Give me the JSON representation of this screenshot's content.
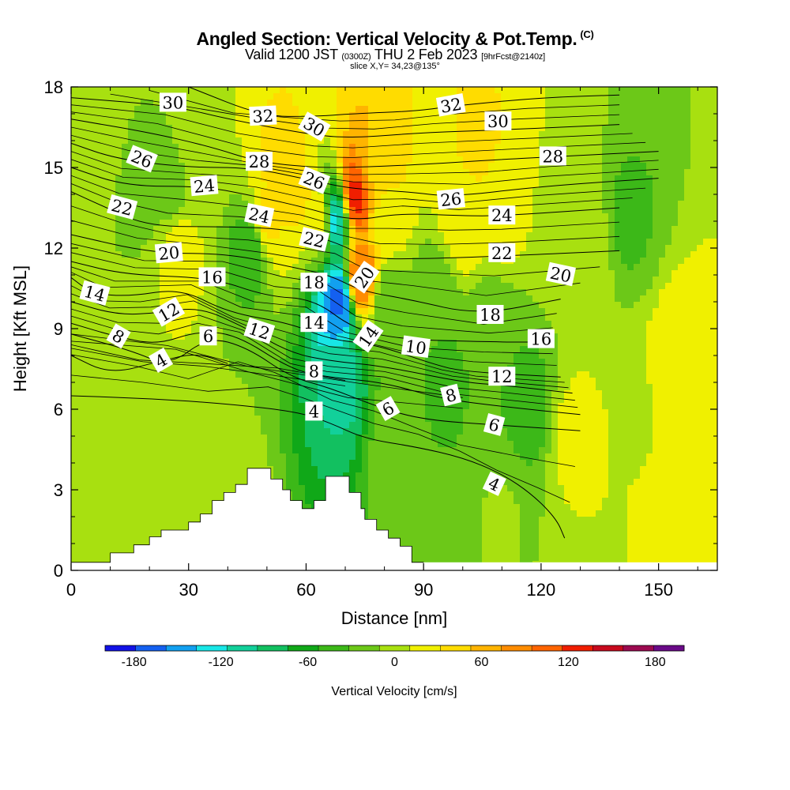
{
  "header": {
    "title": "Angled Section: Vertical Velocity & Pot.Temp.",
    "copyright": "(C)",
    "valid_a": "Valid 1200 JST",
    "valid_b": "(0300Z)",
    "valid_c": "THU 2 Feb 2023",
    "valid_d": "[9hrFcst@2140z]",
    "slice": "slice X,Y= 34,23@135°"
  },
  "chart_data": {
    "type": "heatmap",
    "title": "Angled Section: Vertical Velocity & Pot.Temp.",
    "xlabel": "Distance [nm]",
    "ylabel": "Height [Kft MSL]",
    "xlim": [
      0,
      165
    ],
    "ylim": [
      0,
      18
    ],
    "x_ticks": [
      "0",
      "30",
      "60",
      "90",
      "120",
      "150"
    ],
    "y_ticks": [
      "0",
      "3",
      "6",
      "9",
      "12",
      "15",
      "18"
    ],
    "colorbar": {
      "label": "Vertical Velocity [cm/s]",
      "tick_labels": [
        "-180",
        "-120",
        "-60",
        "0",
        "60",
        "120",
        "180"
      ],
      "range": [
        -200,
        200
      ],
      "colors": [
        "#1212e6",
        "#1460f0",
        "#12a0f0",
        "#18e6e6",
        "#12d09a",
        "#12c060",
        "#10a818",
        "#3cb818",
        "#6cc818",
        "#a8e010",
        "#f0f000",
        "#ffdc00",
        "#ffb400",
        "#ff8c00",
        "#ff6400",
        "#f01e00",
        "#c80a1e",
        "#9c0a50",
        "#6a0a88"
      ]
    },
    "field": [
      {
        "x": 5,
        "y": 16,
        "w": 0
      },
      {
        "x": 18,
        "y": 14,
        "w": -15
      },
      {
        "x": 25,
        "y": 14,
        "w": -20
      },
      {
        "x": 27,
        "y": 12,
        "w": 20
      },
      {
        "x": 34,
        "y": 16,
        "w": 10
      },
      {
        "x": 46,
        "y": 12,
        "w": -45
      },
      {
        "x": 50,
        "y": 13,
        "w": 35
      },
      {
        "x": 54,
        "y": 15,
        "w": 40
      },
      {
        "x": 58,
        "y": 14,
        "w": 35
      },
      {
        "x": 64,
        "y": 13,
        "w": 30
      },
      {
        "x": 67,
        "y": 13,
        "w": -120
      },
      {
        "x": 68,
        "y": 10,
        "w": -160
      },
      {
        "x": 69,
        "y": 7,
        "w": -100
      },
      {
        "x": 73,
        "y": 14,
        "w": 120
      },
      {
        "x": 74,
        "y": 11,
        "w": 90
      },
      {
        "x": 77,
        "y": 15,
        "w": 50
      },
      {
        "x": 80,
        "y": 13,
        "w": 25
      },
      {
        "x": 81,
        "y": 10,
        "w": -25
      },
      {
        "x": 83,
        "y": 5,
        "w": -20
      },
      {
        "x": 93,
        "y": 10,
        "w": -30
      },
      {
        "x": 95,
        "y": 7,
        "w": -35
      },
      {
        "x": 100,
        "y": 13,
        "w": 25
      },
      {
        "x": 104,
        "y": 16,
        "w": 35
      },
      {
        "x": 108,
        "y": 9,
        "w": -30
      },
      {
        "x": 110,
        "y": 13,
        "w": 15
      },
      {
        "x": 117,
        "y": 6,
        "w": -40
      },
      {
        "x": 125,
        "y": 14,
        "w": 10
      },
      {
        "x": 128,
        "y": 5,
        "w": 15
      },
      {
        "x": 132,
        "y": 12,
        "w": 10
      },
      {
        "x": 142,
        "y": 13,
        "w": -35
      },
      {
        "x": 20,
        "y": 5,
        "w": 10
      },
      {
        "x": 40,
        "y": 2,
        "w": 5
      },
      {
        "x": 110,
        "y": 2,
        "w": -10
      },
      {
        "x": 145,
        "y": 6,
        "w": 10
      },
      {
        "x": 155,
        "y": 8,
        "w": 20
      },
      {
        "x": 160,
        "y": 3,
        "w": 25
      }
    ],
    "terrain": [
      [
        0,
        0.3
      ],
      [
        10,
        0.3
      ],
      [
        10,
        0.65
      ],
      [
        16,
        0.65
      ],
      [
        16,
        0.95
      ],
      [
        20,
        0.95
      ],
      [
        20,
        1.25
      ],
      [
        23,
        1.25
      ],
      [
        23,
        1.5
      ],
      [
        30,
        1.5
      ],
      [
        30,
        1.8
      ],
      [
        33,
        1.8
      ],
      [
        33,
        2.1
      ],
      [
        36,
        2.1
      ],
      [
        36,
        2.6
      ],
      [
        39,
        2.6
      ],
      [
        39,
        2.9
      ],
      [
        42,
        2.9
      ],
      [
        42,
        3.2
      ],
      [
        45,
        3.2
      ],
      [
        45,
        3.8
      ],
      [
        51,
        3.8
      ],
      [
        51,
        3.4
      ],
      [
        54,
        3.4
      ],
      [
        54,
        3.0
      ],
      [
        56,
        3.0
      ],
      [
        56,
        2.6
      ],
      [
        59,
        2.6
      ],
      [
        59,
        2.3
      ],
      [
        62,
        2.3
      ],
      [
        62,
        2.6
      ],
      [
        65,
        2.6
      ],
      [
        65,
        3.5
      ],
      [
        71,
        3.5
      ],
      [
        71,
        2.9
      ],
      [
        74,
        2.9
      ],
      [
        74,
        2.3
      ],
      [
        75,
        2.3
      ],
      [
        75,
        1.9
      ],
      [
        78,
        1.9
      ],
      [
        78,
        1.5
      ],
      [
        81,
        1.5
      ],
      [
        81,
        1.2
      ],
      [
        84,
        1.2
      ],
      [
        84,
        0.9
      ],
      [
        87,
        0.9
      ],
      [
        87,
        0.3
      ],
      [
        90,
        0.3
      ],
      [
        90,
        0
      ]
    ],
    "theta_contours": [
      {
        "value": "4",
        "label_at": [
          56,
          5.95
        ],
        "pts": [
          [
            0,
            6.5
          ],
          [
            20,
            6.4
          ],
          [
            40,
            6.2
          ],
          [
            58,
            5.9
          ],
          [
            66,
            5.5
          ],
          [
            75,
            4.9
          ],
          [
            88,
            4.6
          ],
          [
            100,
            4.2
          ],
          [
            110,
            3.6
          ],
          [
            118,
            2.8
          ],
          [
            124,
            1.9
          ],
          [
            126,
            1.2
          ]
        ]
      },
      {
        "value": "6",
        "label_at": [
          35,
          8.7
        ],
        "pts": [
          [
            0,
            8.8
          ],
          [
            15,
            8.2
          ],
          [
            25,
            7.6
          ],
          [
            35,
            8.7
          ],
          [
            45,
            8.3
          ],
          [
            56,
            7.2
          ],
          [
            66,
            6.8
          ],
          [
            78,
            6.1
          ],
          [
            90,
            5.6
          ],
          [
            110,
            5.4
          ],
          [
            130,
            5.2
          ]
        ]
      },
      {
        "value": "4",
        "label_at": [
          23,
          7.8
        ],
        "pts": [
          [
            0,
            8.0
          ],
          [
            10,
            7.3
          ],
          [
            23,
            7.8
          ],
          [
            32,
            8.1
          ],
          [
            40,
            7.7
          ]
        ]
      },
      {
        "value": "8",
        "label_at": [
          11.5,
          8.7
        ],
        "pts": [
          [
            0,
            9.2
          ],
          [
            11.5,
            8.7
          ],
          [
            22,
            8.4
          ],
          [
            32,
            8.9
          ],
          [
            42,
            8.8
          ],
          [
            56,
            7.5
          ],
          [
            65,
            7.2
          ],
          [
            80,
            7.0
          ],
          [
            94,
            6.4
          ],
          [
            110,
            6.1
          ],
          [
            130,
            5.8
          ]
        ]
      },
      {
        "value": "12",
        "label_at": [
          23,
          9.6
        ],
        "pts": [
          [
            0,
            10.0
          ],
          [
            12,
            9.5
          ],
          [
            23,
            9.6
          ],
          [
            33,
            9.8
          ],
          [
            45,
            9.0
          ],
          [
            56,
            8.1
          ],
          [
            66,
            7.8
          ],
          [
            80,
            7.6
          ],
          [
            100,
            7.0
          ],
          [
            110,
            6.9
          ],
          [
            128,
            6.6
          ]
        ]
      },
      {
        "value": "14",
        "label_at": [
          5.5,
          10.3
        ],
        "pts": [
          [
            0,
            10.9
          ],
          [
            5.5,
            10.3
          ],
          [
            15,
            10.2
          ],
          [
            28,
            10.5
          ],
          [
            40,
            9.6
          ],
          [
            56,
            9.2
          ],
          [
            66,
            8.6
          ],
          [
            78,
            8.4
          ],
          [
            92,
            7.7
          ],
          [
            100,
            7.4
          ],
          [
            125,
            7.2
          ]
        ]
      },
      {
        "value": "16",
        "label_at": [
          36,
          10.9
        ],
        "pts": [
          [
            0,
            11.5
          ],
          [
            14,
            11.0
          ],
          [
            36,
            10.9
          ],
          [
            50,
            10.2
          ],
          [
            62,
            10.1
          ],
          [
            72,
            9.0
          ],
          [
            84,
            8.6
          ],
          [
            108,
            8.5
          ],
          [
            122,
            8.5
          ]
        ]
      },
      {
        "value": "20",
        "label_at": [
          21,
          11.8
        ],
        "pts": [
          [
            0,
            12.5
          ],
          [
            21,
            11.8
          ],
          [
            40,
            11.8
          ],
          [
            56,
            11.3
          ],
          [
            66,
            11.0
          ],
          [
            74,
            10.4
          ],
          [
            86,
            10.1
          ],
          [
            104,
            9.5
          ],
          [
            125,
            10.1
          ]
        ]
      },
      {
        "value": "22",
        "label_at": [
          9,
          13.5
        ],
        "pts": [
          [
            0,
            14.1
          ],
          [
            9,
            13.5
          ],
          [
            20,
            12.8
          ],
          [
            40,
            12.8
          ],
          [
            56,
            12.7
          ],
          [
            68,
            12.2
          ],
          [
            76,
            11.6
          ],
          [
            90,
            11.6
          ],
          [
            110,
            11.7
          ],
          [
            140,
            11.9
          ]
        ]
      },
      {
        "value": "24",
        "label_at": [
          34,
          14.3
        ],
        "pts": [
          [
            0,
            15.0
          ],
          [
            14,
            14.3
          ],
          [
            34,
            14.3
          ],
          [
            48,
            13.9
          ],
          [
            60,
            13.5
          ],
          [
            72,
            13.0
          ],
          [
            84,
            13.3
          ],
          [
            100,
            13.2
          ],
          [
            110,
            13.2
          ],
          [
            140,
            13.5
          ]
        ]
      },
      {
        "value": "26",
        "label_at": [
          12,
          15.3
        ],
        "pts": [
          [
            0,
            15.9
          ],
          [
            12,
            15.3
          ],
          [
            30,
            15.0
          ],
          [
            46,
            15.0
          ],
          [
            62,
            14.5
          ],
          [
            72,
            14.2
          ],
          [
            86,
            14.1
          ],
          [
            97,
            13.9
          ],
          [
            120,
            14.3
          ],
          [
            150,
            14.6
          ]
        ]
      },
      {
        "value": "28",
        "label_at": [
          48,
          15.2
        ],
        "pts": [
          [
            0,
            16.8
          ],
          [
            20,
            16.3
          ],
          [
            35,
            15.8
          ],
          [
            48,
            15.2
          ],
          [
            62,
            15.0
          ],
          [
            72,
            15.0
          ],
          [
            88,
            15.1
          ],
          [
            110,
            15.3
          ],
          [
            123,
            15.4
          ],
          [
            150,
            15.6
          ]
        ]
      },
      {
        "value": "30",
        "label_at": [
          26,
          17.3
        ],
        "pts": [
          [
            0,
            17.6
          ],
          [
            26,
            17.3
          ],
          [
            40,
            16.8
          ],
          [
            62,
            16.2
          ],
          [
            72,
            16.1
          ],
          [
            90,
            16.3
          ],
          [
            110,
            16.4
          ],
          [
            140,
            16.6
          ]
        ]
      },
      {
        "value": "32",
        "label_at": [
          49,
          16.9
        ],
        "pts": [
          [
            30,
            18.0
          ],
          [
            49,
            16.9
          ],
          [
            62,
            16.9
          ],
          [
            72,
            17.0
          ],
          [
            88,
            17.1
          ],
          [
            98,
            17.3
          ],
          [
            120,
            17.6
          ],
          [
            140,
            17.7
          ]
        ]
      }
    ],
    "contour_labels": [
      {
        "text": "30",
        "x": 26,
        "y": 17.4,
        "rot": 0
      },
      {
        "text": "32",
        "x": 49,
        "y": 16.9,
        "rot": -3
      },
      {
        "text": "30",
        "x": 62,
        "y": 16.5,
        "rot": 30
      },
      {
        "text": "32",
        "x": 97,
        "y": 17.3,
        "rot": -10
      },
      {
        "text": "30",
        "x": 109,
        "y": 16.7,
        "rot": 0
      },
      {
        "text": "26",
        "x": 18,
        "y": 15.3,
        "rot": 22
      },
      {
        "text": "28",
        "x": 48,
        "y": 15.2,
        "rot": 0
      },
      {
        "text": "26",
        "x": 62,
        "y": 14.5,
        "rot": 22
      },
      {
        "text": "28",
        "x": 123,
        "y": 15.4,
        "rot": 0
      },
      {
        "text": "24",
        "x": 34,
        "y": 14.3,
        "rot": -5
      },
      {
        "text": "22",
        "x": 13,
        "y": 13.5,
        "rot": 15
      },
      {
        "text": "26",
        "x": 97,
        "y": 13.8,
        "rot": -6
      },
      {
        "text": "24",
        "x": 48,
        "y": 13.2,
        "rot": 12
      },
      {
        "text": "24",
        "x": 110,
        "y": 13.2,
        "rot": 0
      },
      {
        "text": "22",
        "x": 62,
        "y": 12.3,
        "rot": 14
      },
      {
        "text": "20",
        "x": 25,
        "y": 11.8,
        "rot": -5
      },
      {
        "text": "22",
        "x": 110,
        "y": 11.8,
        "rot": 0
      },
      {
        "text": "20",
        "x": 75,
        "y": 10.9,
        "rot": -55
      },
      {
        "text": "20",
        "x": 125,
        "y": 11.0,
        "rot": 12
      },
      {
        "text": "16",
        "x": 36,
        "y": 10.9,
        "rot": 0
      },
      {
        "text": "18",
        "x": 62,
        "y": 10.7,
        "rot": 0
      },
      {
        "text": "14",
        "x": 6,
        "y": 10.3,
        "rot": 15
      },
      {
        "text": "12",
        "x": 25,
        "y": 9.6,
        "rot": -30
      },
      {
        "text": "18",
        "x": 107,
        "y": 9.5,
        "rot": 0
      },
      {
        "text": "14",
        "x": 62,
        "y": 9.2,
        "rot": 0
      },
      {
        "text": "12",
        "x": 48,
        "y": 8.9,
        "rot": 18
      },
      {
        "text": "14",
        "x": 76,
        "y": 8.7,
        "rot": -55
      },
      {
        "text": "8",
        "x": 12,
        "y": 8.7,
        "rot": 30
      },
      {
        "text": "6",
        "x": 35,
        "y": 8.7,
        "rot": 0
      },
      {
        "text": "16",
        "x": 120,
        "y": 8.6,
        "rot": 0
      },
      {
        "text": "10",
        "x": 88,
        "y": 8.3,
        "rot": 8
      },
      {
        "text": "4",
        "x": 23,
        "y": 7.8,
        "rot": -30
      },
      {
        "text": "8",
        "x": 62,
        "y": 7.4,
        "rot": 0
      },
      {
        "text": "12",
        "x": 110,
        "y": 7.2,
        "rot": 0
      },
      {
        "text": "8",
        "x": 97,
        "y": 6.5,
        "rot": -14
      },
      {
        "text": "6",
        "x": 81,
        "y": 6.0,
        "rot": -30
      },
      {
        "text": "4",
        "x": 62,
        "y": 5.9,
        "rot": 0
      },
      {
        "text": "6",
        "x": 108,
        "y": 5.4,
        "rot": 15
      },
      {
        "text": "4",
        "x": 108,
        "y": 3.2,
        "rot": 25
      }
    ]
  }
}
